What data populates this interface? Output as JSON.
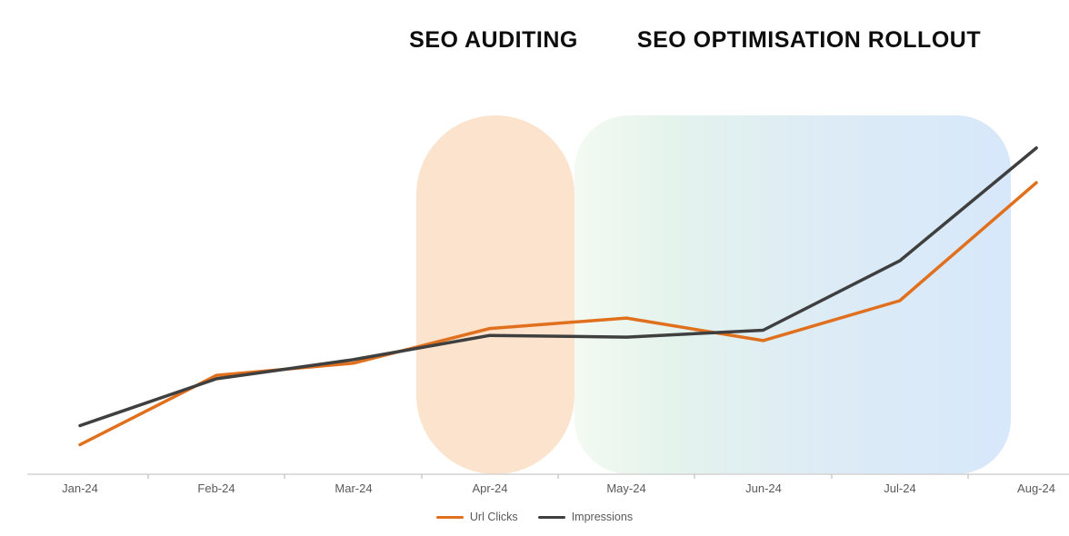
{
  "titles": {
    "auditing": "SEO AUDITING",
    "rollout": "SEO OPTIMISATION ROLLOUT"
  },
  "chart_data": {
    "type": "line",
    "title": "",
    "xlabel": "",
    "ylabel": "",
    "categories": [
      "Jan-24",
      "Feb-24",
      "Mar-24",
      "Apr-24",
      "May-24",
      "Jun-24",
      "Jul-24",
      "Aug-24"
    ],
    "series": [
      {
        "name": "Url Clicks",
        "color": "#e0701d",
        "values": [
          8.5,
          28.5,
          32,
          42,
          45,
          38.5,
          50,
          84
        ]
      },
      {
        "name": "Impressions",
        "color": "#3f3f3f",
        "values": [
          14,
          27.5,
          33,
          40,
          39.5,
          41.5,
          61.5,
          94
        ]
      }
    ],
    "ylim": [
      0,
      100
    ],
    "grid": false,
    "legend_position": "bottom",
    "annotations": [
      {
        "label": "SEO AUDITING",
        "type": "highlight-region",
        "span": [
          "Apr-24"
        ],
        "color": "#fbe3cd"
      },
      {
        "label": "SEO OPTIMISATION ROLLOUT",
        "type": "highlight-region",
        "span": [
          "May-24",
          "Aug-24"
        ],
        "color": "#e4f3ec → #d7e8fa"
      }
    ]
  },
  "colors": {
    "url_clicks_line": "#e0701d",
    "impressions_line": "#3f3f3f",
    "auditing_region": "#fbe3cd",
    "rollout_region_start": "#e4f3ec",
    "rollout_region_end": "#d7e8fa",
    "axis_line": "#d4d4d4",
    "label_text": "#595959"
  }
}
